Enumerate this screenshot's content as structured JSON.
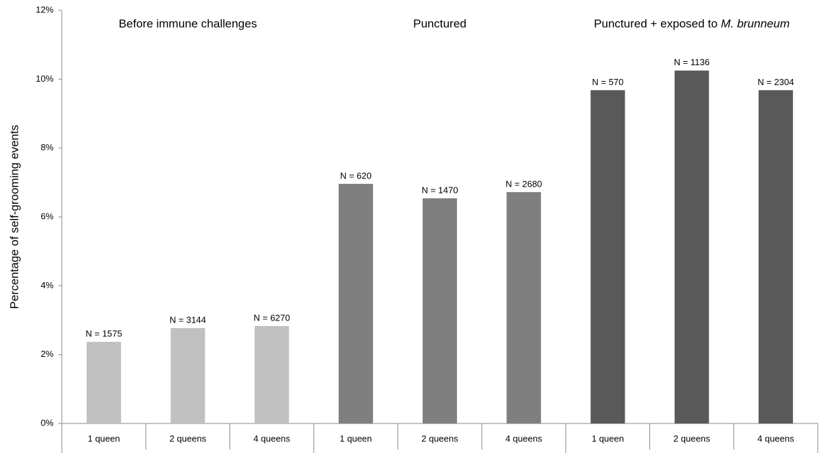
{
  "chart_data": {
    "type": "grouped_bar",
    "y_label": "Percentage of self-grooming events",
    "ylim": [
      0,
      12
    ],
    "yticks": [
      {
        "value": 0,
        "label": "0%"
      },
      {
        "value": 2,
        "label": "2%"
      },
      {
        "value": 4,
        "label": "4%"
      },
      {
        "value": 6,
        "label": "6%"
      },
      {
        "value": 8,
        "label": "8%"
      },
      {
        "value": 10,
        "label": "10%"
      },
      {
        "value": 12,
        "label": "12%"
      }
    ],
    "groups": [
      {
        "name": "Before immune challenges",
        "color": "#c0c0c0",
        "categories": [
          "1 queen",
          "2 queens",
          "4 queens"
        ],
        "values": [
          2.37,
          2.77,
          2.83
        ],
        "n_labels": [
          "N = 1575",
          "N = 3144",
          "N = 6270"
        ]
      },
      {
        "name": "Punctured",
        "color": "#7f7f7f",
        "categories": [
          "1 queen",
          "2 queens",
          "4 queens"
        ],
        "values": [
          6.96,
          6.54,
          6.72
        ],
        "n_labels": [
          "N = 620",
          "N = 1470",
          "N = 2680"
        ]
      },
      {
        "name": "Punctured + exposed to ",
        "name_italic": "M. brunneum",
        "color": "#595959",
        "categories": [
          "1 queen",
          "2 queens",
          "4 queens"
        ],
        "values": [
          9.68,
          10.25,
          9.68
        ],
        "n_labels": [
          "N = 570",
          "N = 1136",
          "N = 2304"
        ]
      }
    ]
  }
}
